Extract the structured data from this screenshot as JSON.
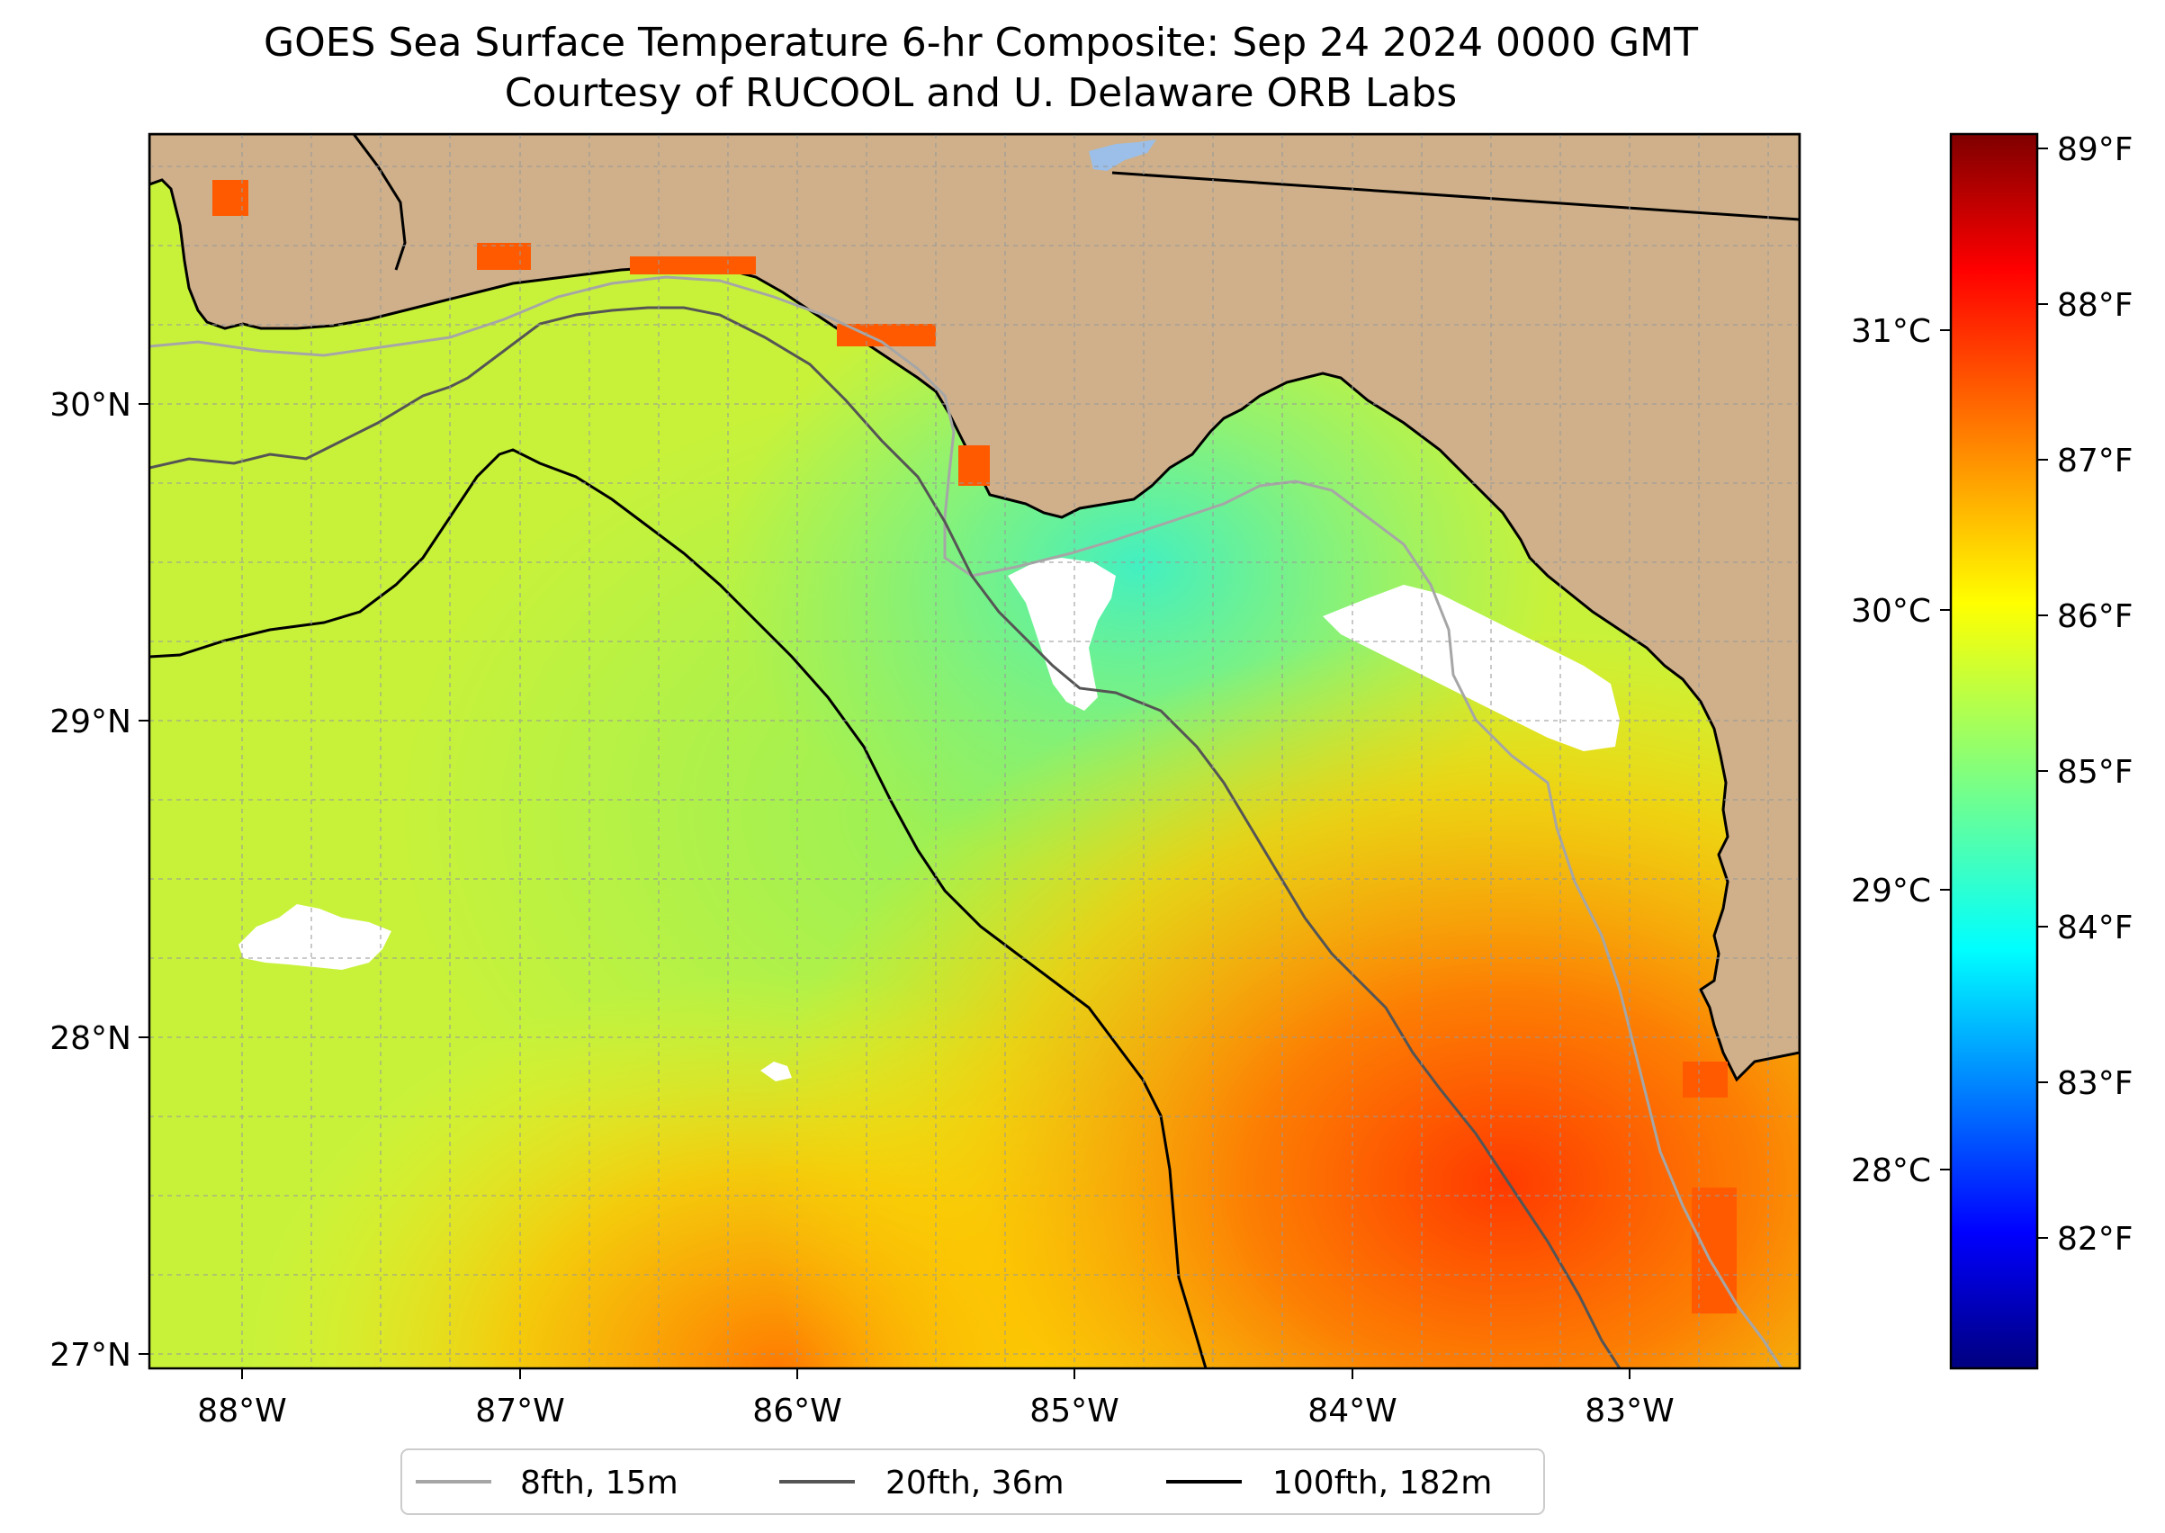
{
  "header": {
    "title_line1": "GOES Sea Surface Temperature 6-hr Composite: Sep 24 2024 0000 GMT",
    "title_line2": "Courtesy of RUCOOL and U. Delaware ORB Labs"
  },
  "map": {
    "lon_ticks": [
      "88°W",
      "87°W",
      "86°W",
      "85°W",
      "84°W",
      "83°W"
    ],
    "lat_ticks": [
      "30°N",
      "29°N",
      "28°N",
      "27°N"
    ],
    "land_color": "#cfb08a",
    "water_palette": {
      "green": "#9ef24a",
      "yellow_green": "#d4f52e",
      "yellow": "#f2f21a",
      "cyan_green": "#5ef2a8",
      "orange": "#ffb300",
      "red_orange": "#ff5a00",
      "red": "#ff2a10"
    }
  },
  "colorbar": {
    "fahrenheit_ticks": [
      "89°F",
      "88°F",
      "87°F",
      "86°F",
      "85°F",
      "84°F",
      "83°F",
      "82°F"
    ],
    "celsius_ticks": [
      "31°C",
      "30°C",
      "29°C",
      "28°C"
    ],
    "colormap": "jet"
  },
  "legend": {
    "items": [
      {
        "label": "8fth, 15m",
        "color": "#a6a6a6"
      },
      {
        "label": "20fth, 36m",
        "color": "#555555"
      },
      {
        "label": "100fth, 182m",
        "color": "#000000"
      }
    ]
  }
}
